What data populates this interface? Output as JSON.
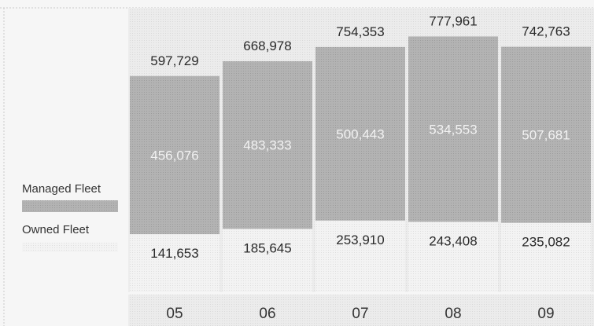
{
  "chart_data": {
    "type": "bar",
    "stacked": true,
    "categories": [
      "05",
      "06",
      "07",
      "08",
      "09"
    ],
    "totals": [
      597729,
      668978,
      754353,
      777961,
      742763
    ],
    "totals_labels": [
      "597,729",
      "668,978",
      "754,353",
      "777,961",
      "742,763"
    ],
    "series": [
      {
        "name": "Owned Fleet",
        "values": [
          141653,
          185645,
          253910,
          243408,
          235082
        ],
        "labels": [
          "141,653",
          "185,645",
          "253,910",
          "243,408",
          "235,082"
        ],
        "color": "#e9e9e9"
      },
      {
        "name": "Managed Fleet",
        "values": [
          456076,
          483333,
          500443,
          534553,
          507681
        ],
        "labels": [
          "456,076",
          "483,333",
          "500,443",
          "534,553",
          "507,681"
        ],
        "color": "#b4b4b4"
      }
    ],
    "ylim": [
      0,
      820000
    ],
    "grid": false,
    "legend": "left"
  }
}
